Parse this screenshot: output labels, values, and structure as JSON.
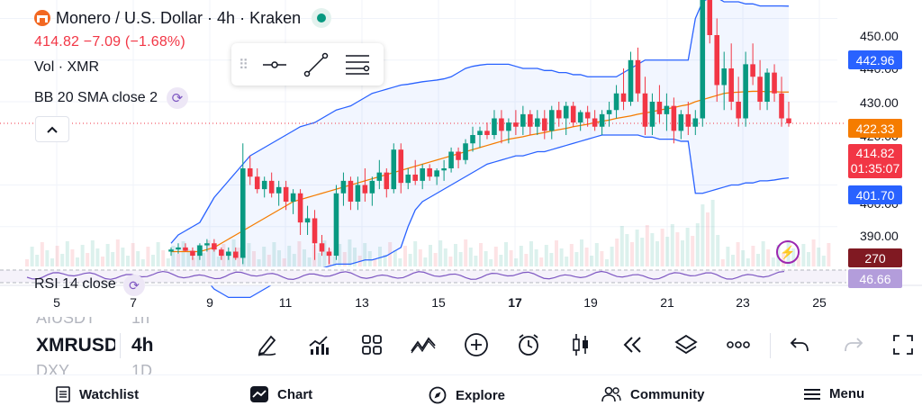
{
  "legend": {
    "title": "Monero / U.S. Dollar · 4h · Kraken",
    "price_line": "414.82  −7.09 (−1.68%)",
    "volume_label": "Vol · XMR",
    "indicator_label": "BB 20 SMA close 2"
  },
  "price_axis": {
    "ticks": [
      "450.00",
      "440.00",
      "430.00",
      "420.00",
      "400.00",
      "390.00"
    ],
    "labels": {
      "bb_upper": "442.96",
      "bb_basis": "422.33",
      "last_price": "414.82",
      "countdown": "01:35:07",
      "bb_lower": "401.70",
      "rsi_upper": "270",
      "rsi_value": "46.66"
    },
    "colors": {
      "bb_upper": "#2962ff",
      "bb_basis": "#f57c00",
      "last_price": "#f23645",
      "bb_lower": "#2962ff",
      "rsi_upper": "#801922",
      "rsi_value": "#b39ddb"
    }
  },
  "time_axis": {
    "ticks": [
      "5",
      "7",
      "9",
      "11",
      "13",
      "15",
      "17",
      "19",
      "21",
      "23",
      "25"
    ]
  },
  "rsi": {
    "label": "RSI 14 close"
  },
  "symbol_wheel": {
    "previous": "AIUSDT",
    "current": "XMRUSD",
    "next": "DXY"
  },
  "interval_wheel": {
    "previous": "1h",
    "current": "4h",
    "next": "1D"
  },
  "toolbar_icons": [
    "pencil-icon",
    "indicators-icon",
    "templates-icon",
    "patterns-icon",
    "add-icon",
    "alarm-icon",
    "candles-icon",
    "replay-icon",
    "layers-icon",
    "more-icon",
    "undo-icon",
    "redo-icon",
    "fullscreen-icon"
  ],
  "nav": {
    "watchlist": "Watchlist",
    "chart": "Chart",
    "explore": "Explore",
    "community": "Community",
    "menu": "Menu"
  },
  "chart_data": {
    "type": "candlestick",
    "symbol": "XMRUSD",
    "interval": "4h",
    "up_color": "#089981",
    "down_color": "#f23645",
    "bb_upper_color": "#2962ff",
    "bb_basis_color": "#f57c00",
    "last_price": 414.82,
    "ylim": [
      380,
      460
    ],
    "ohlc": [
      [
        384,
        385,
        383,
        384.5
      ],
      [
        384.5,
        386,
        383.5,
        385
      ],
      [
        385,
        386,
        384,
        384.2
      ],
      [
        384.2,
        385,
        382,
        383
      ],
      [
        383,
        386,
        382,
        385.5
      ],
      [
        385.5,
        387,
        384,
        386
      ],
      [
        386,
        387,
        384,
        384.5
      ],
      [
        384.5,
        385,
        382,
        383
      ],
      [
        383,
        385,
        382,
        384
      ],
      [
        384,
        385,
        382,
        382.5
      ],
      [
        382.5,
        410,
        381,
        404
      ],
      [
        404,
        407,
        400,
        402
      ],
      [
        402,
        404,
        398,
        399
      ],
      [
        399,
        402,
        397,
        401
      ],
      [
        401,
        403,
        397,
        398
      ],
      [
        398,
        401,
        395,
        399.5
      ],
      [
        399.5,
        401,
        394,
        396
      ],
      [
        396,
        399,
        393,
        398
      ],
      [
        398,
        399,
        388,
        391
      ],
      [
        391,
        395,
        388,
        392
      ],
      [
        392,
        394,
        382,
        386
      ],
      [
        386,
        388,
        383,
        384
      ],
      [
        384,
        385,
        381,
        383
      ],
      [
        383,
        400,
        382,
        398
      ],
      [
        398,
        403,
        395,
        401
      ],
      [
        401,
        402,
        394,
        396
      ],
      [
        396,
        402,
        394,
        400
      ],
      [
        400,
        404,
        396,
        398
      ],
      [
        398,
        402,
        395,
        401
      ],
      [
        401,
        406,
        399,
        403
      ],
      [
        403,
        404,
        397,
        399
      ],
      [
        399,
        410,
        398,
        408.5
      ],
      [
        408.5,
        410,
        398,
        400.5
      ],
      [
        400.5,
        404,
        399,
        402.5
      ],
      [
        402.5,
        406,
        400,
        401
      ],
      [
        401,
        405,
        399,
        404
      ],
      [
        404,
        405,
        401,
        402
      ],
      [
        402,
        404,
        400,
        403.5
      ],
      [
        403.5,
        406,
        401,
        404
      ],
      [
        404,
        409,
        403,
        408
      ],
      [
        408,
        409,
        404,
        406
      ],
      [
        406,
        411,
        405,
        410
      ],
      [
        410,
        414,
        408,
        412
      ],
      [
        412,
        414,
        409,
        413
      ],
      [
        413,
        415,
        411,
        412
      ],
      [
        412,
        418,
        411,
        416
      ],
      [
        416,
        418,
        410,
        413
      ],
      [
        413,
        416,
        410,
        415
      ],
      [
        415,
        418,
        412,
        414
      ],
      [
        414,
        419,
        412,
        417
      ],
      [
        417,
        418,
        412,
        414
      ],
      [
        414,
        418,
        412,
        416
      ],
      [
        416,
        418,
        411,
        413
      ],
      [
        413,
        419,
        411,
        418
      ],
      [
        418,
        420,
        414,
        416
      ],
      [
        416,
        420,
        412,
        419
      ],
      [
        419,
        420,
        414,
        415
      ],
      [
        415,
        418,
        413,
        417.5
      ],
      [
        417.5,
        419,
        414,
        416
      ],
      [
        416,
        418,
        413,
        414
      ],
      [
        414,
        418,
        412,
        417
      ],
      [
        417,
        420,
        414,
        418
      ],
      [
        418,
        424,
        416,
        422
      ],
      [
        422,
        428,
        418,
        420
      ],
      [
        420,
        432,
        419,
        430
      ],
      [
        430,
        433,
        420,
        422
      ],
      [
        422,
        426,
        412,
        414
      ],
      [
        414,
        422,
        412,
        420
      ],
      [
        420,
        424,
        415,
        417
      ],
      [
        417,
        422,
        413,
        419
      ],
      [
        419,
        421,
        410,
        413
      ],
      [
        413,
        418,
        411,
        417
      ],
      [
        417,
        420,
        412,
        414
      ],
      [
        414,
        418,
        412,
        416
      ],
      [
        416,
        460,
        414,
        452
      ],
      [
        452,
        455,
        434,
        436
      ],
      [
        436,
        440,
        420,
        424
      ],
      [
        424,
        432,
        418,
        428
      ],
      [
        428,
        434,
        418,
        420
      ],
      [
        420,
        426,
        414,
        416
      ],
      [
        416,
        432,
        414,
        429
      ],
      [
        429,
        434,
        424,
        426
      ],
      [
        426,
        430,
        418,
        420
      ],
      [
        420,
        428,
        418,
        427
      ],
      [
        427,
        429,
        420,
        422
      ],
      [
        422,
        426,
        414,
        416
      ],
      [
        416,
        420,
        414,
        414.82
      ]
    ],
    "bb_upper": [
      386,
      388,
      389,
      390,
      391,
      394,
      397,
      399,
      401,
      403,
      405,
      407,
      408,
      409,
      410,
      411,
      412,
      413,
      414,
      414.5,
      415,
      416,
      417,
      418,
      418.5,
      419,
      420,
      421,
      422,
      422.5,
      423,
      423.5,
      424,
      424.2,
      424.5,
      424.8,
      425,
      425.2,
      425.5,
      426,
      427,
      428,
      428.5,
      428.8,
      429,
      429,
      429,
      429,
      428.5,
      428,
      428,
      428,
      427.5,
      427.5,
      427,
      427,
      426.5,
      426.5,
      426,
      426,
      426,
      426,
      426,
      427,
      428,
      429,
      430,
      430,
      430,
      430,
      430,
      430,
      430,
      440,
      444,
      445,
      445,
      444,
      444,
      444,
      443.5,
      443.5,
      443,
      443,
      443,
      443,
      442.96
    ],
    "bb_basis": [
      384,
      384,
      384,
      384,
      384,
      384.5,
      385,
      386,
      387,
      388,
      389,
      390,
      391,
      392,
      393,
      394,
      395,
      396,
      396.5,
      397,
      397.5,
      398,
      398.5,
      399,
      399.5,
      400,
      400.5,
      401,
      401.5,
      402,
      402.5,
      403,
      403.5,
      404,
      404.5,
      405,
      405.5,
      406,
      406.5,
      407,
      407.5,
      408,
      408.5,
      409,
      409.5,
      410,
      410.5,
      411,
      411.3,
      411.6,
      412,
      412.3,
      412.6,
      413,
      413.3,
      413.6,
      414,
      414.3,
      414.6,
      415,
      415.3,
      415.6,
      416,
      416.3,
      416.6,
      417,
      417.3,
      417.6,
      418,
      418.3,
      418.6,
      419,
      419.3,
      420,
      420.5,
      421,
      421.5,
      422,
      422.2,
      422.3,
      422.4,
      422.5,
      422.5,
      422.4,
      422.4,
      422.33,
      422.33
    ],
    "bb_lower": [
      380,
      379.5,
      379,
      378.5,
      378,
      377,
      375,
      374,
      373,
      373,
      373,
      373,
      374,
      375,
      376,
      377,
      378,
      379,
      379,
      379.5,
      380,
      380,
      380.5,
      381,
      381,
      381,
      381.5,
      382,
      382,
      382.5,
      383,
      384,
      385,
      390,
      394,
      396,
      397,
      398,
      399,
      400,
      401,
      402,
      403,
      404,
      405,
      405.5,
      406,
      406.5,
      407,
      407,
      407.5,
      408,
      408,
      408.5,
      409,
      409.5,
      410,
      410.5,
      411,
      411.5,
      412,
      412,
      412,
      412,
      412,
      412,
      411.5,
      411.5,
      411,
      411,
      411,
      410.5,
      410.5,
      398,
      398,
      398.5,
      399,
      399.5,
      400,
      400,
      400.5,
      400.5,
      401,
      401,
      401.2,
      401.5,
      401.7
    ]
  }
}
